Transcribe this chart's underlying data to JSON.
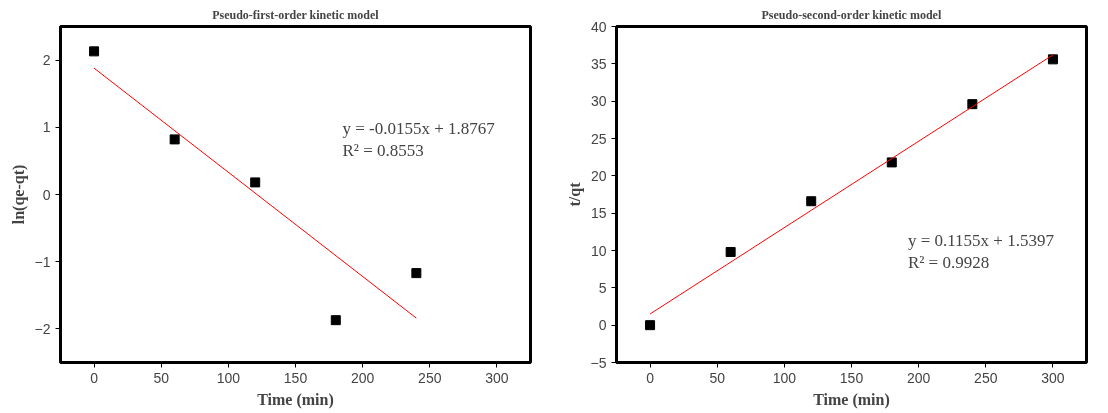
{
  "chart_data": [
    {
      "type": "scatter",
      "title": "Pseudo-first-order kinetic model",
      "xlabel": "Time (min)",
      "ylabel": "ln(qe-qt)",
      "xlim": [
        -25,
        325
      ],
      "ylim": [
        -2.5,
        2.5
      ],
      "xticks": [
        0,
        50,
        100,
        150,
        200,
        250,
        300
      ],
      "yticks": [
        {
          "value": -2,
          "label": "−2"
        },
        {
          "value": -1,
          "label": "−1"
        },
        0,
        1,
        2
      ],
      "grid": false,
      "series": [
        {
          "marker": "square",
          "color": "#000000",
          "x": [
            0,
            60,
            120,
            180,
            240
          ],
          "values": [
            2.13,
            0.82,
            0.18,
            -1.87,
            -1.17
          ]
        },
        {
          "type": "line",
          "line_style": "solid",
          "color": "#ff0000",
          "x": [
            0,
            240
          ],
          "values": [
            1.88,
            -1.84
          ]
        }
      ],
      "annotations": [
        "y = -0.0155x + 1.8767",
        "R² = 0.8553"
      ]
    },
    {
      "type": "scatter",
      "title": "Pseudo-second-order kinetic model",
      "xlabel": "Time (min)",
      "ylabel": "t/qt",
      "xlim": [
        -25,
        325
      ],
      "ylim": [
        -5,
        40
      ],
      "xticks": [
        0,
        50,
        100,
        150,
        200,
        250,
        300
      ],
      "yticks": [
        {
          "value": -5,
          "label": "−5"
        },
        0,
        5,
        10,
        15,
        20,
        25,
        30,
        35,
        40
      ],
      "grid": false,
      "series": [
        {
          "marker": "square",
          "color": "#000000",
          "x": [
            0,
            60,
            120,
            180,
            240,
            300
          ],
          "values": [
            0,
            9.8,
            16.6,
            21.8,
            29.6,
            35.6
          ]
        },
        {
          "type": "line",
          "line_style": "solid",
          "color": "#ff0000",
          "x": [
            0,
            300
          ],
          "values": [
            1.5,
            36.2
          ]
        }
      ],
      "annotations": [
        "y = 0.1155x + 1.5397",
        "R² = 0.9928"
      ]
    }
  ]
}
